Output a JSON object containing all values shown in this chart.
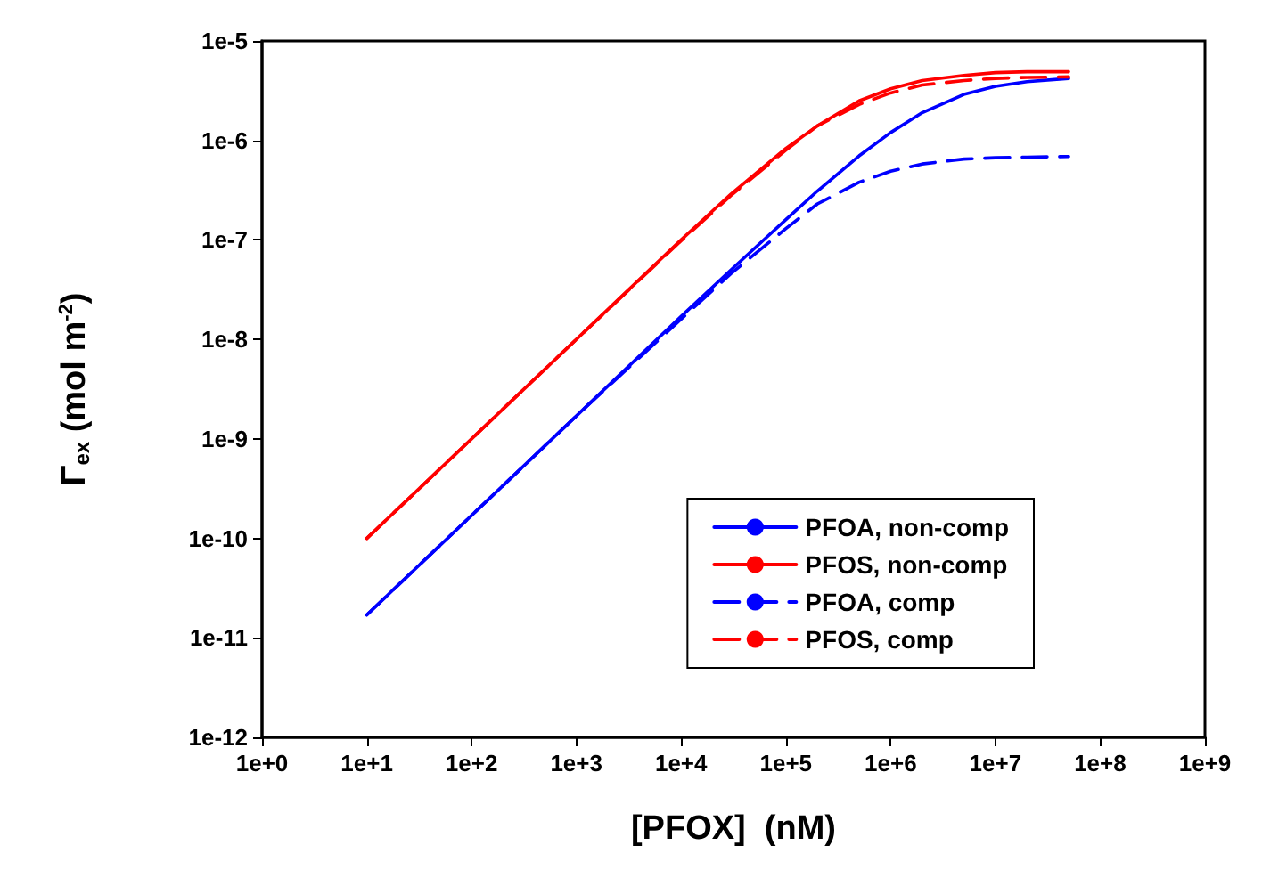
{
  "chart_data": {
    "type": "line",
    "xlabel": "[PFOX]  (nM)",
    "ylabel": "Γ$_{ex}$ (mol m$^{-2}$)",
    "log": "xy",
    "grid": false,
    "legend": "bottom right",
    "marker": "none",
    "line_style": "solid",
    "xlim": [
      1,
      1000000000
    ],
    "ylim": [
      1e-12,
      1e-05
    ],
    "xticks": [
      {
        "value": 1,
        "label": "1e+0"
      },
      {
        "value": 10,
        "label": "1e+1"
      },
      {
        "value": 100,
        "label": "1e+2"
      },
      {
        "value": 1000,
        "label": "1e+3"
      },
      {
        "value": 10000,
        "label": "1e+4"
      },
      {
        "value": 100000,
        "label": "1e+5"
      },
      {
        "value": 1000000,
        "label": "1e+6"
      },
      {
        "value": 10000000,
        "label": "1e+7"
      },
      {
        "value": 100000000,
        "label": "1e+8"
      },
      {
        "value": 1000000000,
        "label": "1e+9"
      }
    ],
    "yticks": [
      {
        "value": 1e-12,
        "label": "1e-12"
      },
      {
        "value": 1e-11,
        "label": "1e-11"
      },
      {
        "value": 1e-10,
        "label": "1e-10"
      },
      {
        "value": 1e-09,
        "label": "1e-9"
      },
      {
        "value": 1e-08,
        "label": "1e-8"
      },
      {
        "value": 1e-07,
        "label": "1e-7"
      },
      {
        "value": 1e-06,
        "label": "1e-6"
      },
      {
        "value": 1e-05,
        "label": "1e-5"
      }
    ],
    "x": [
      10,
      100,
      1000,
      10000,
      30000,
      100000,
      200000,
      500000,
      1000000,
      2000000,
      5000000,
      10000000,
      20000000,
      50000000
    ],
    "series": [
      {
        "name": "PFOA, non-comp",
        "color": "#0000ff",
        "values": [
          1.7e-11,
          1.7e-10,
          1.7e-09,
          1.7e-08,
          5e-08,
          1.6e-07,
          3.1e-07,
          7e-07,
          1.2e-06,
          1.9e-06,
          2.9e-06,
          3.5e-06,
          3.9e-06,
          4.2e-06
        ]
      },
      {
        "name": "PFOS, non-comp",
        "color": "#ff0000",
        "values": [
          1e-10,
          1e-09,
          1e-08,
          1e-07,
          2.9e-07,
          8.3e-07,
          1.4e-06,
          2.5e-06,
          3.3e-06,
          4e-06,
          4.5e-06,
          4.8e-06,
          4.9e-06,
          4.9e-06
        ]
      },
      {
        "name": "PFOA, comp",
        "color": "#0000ff",
        "line_style": "dashed",
        "values": [
          1.7e-11,
          1.7e-10,
          1.7e-09,
          1.6e-08,
          4.6e-08,
          1.3e-07,
          2.3e-07,
          3.8e-07,
          4.9e-07,
          5.8e-07,
          6.5e-07,
          6.7e-07,
          6.8e-07,
          6.9e-07
        ]
      },
      {
        "name": "PFOS, comp",
        "color": "#ff0000",
        "line_style": "dashed",
        "values": [
          1e-10,
          1e-09,
          1e-08,
          9.8e-08,
          2.8e-07,
          8e-07,
          1.4e-06,
          2.3e-06,
          3e-06,
          3.6e-06,
          4e-06,
          4.2e-06,
          4.3e-06,
          4.35e-06
        ]
      }
    ]
  }
}
